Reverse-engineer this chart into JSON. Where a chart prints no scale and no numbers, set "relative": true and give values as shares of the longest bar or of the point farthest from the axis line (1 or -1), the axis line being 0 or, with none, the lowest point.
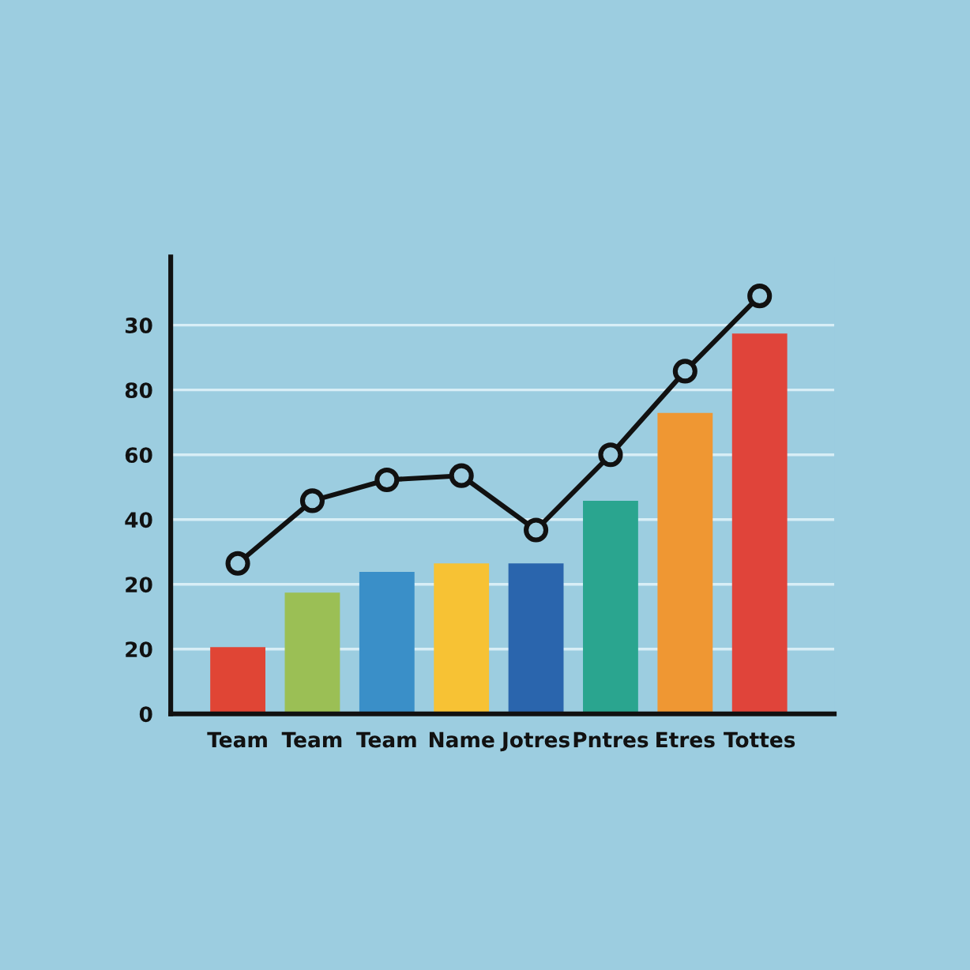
{
  "chart_data": {
    "type": "bar",
    "relative": true,
    "categories": [
      "Team",
      "Team",
      "Team",
      "Name",
      "Jotres",
      "Pntres",
      "Etres",
      "Tottes"
    ],
    "series": [
      {
        "colors": [
          "#e04535",
          "#9bbf55",
          "#3a8fc8",
          "#f7c234",
          "#2a65ad",
          "#2aa58f",
          "#ef9733",
          "#e0443a"
        ],
        "values": [
          0.16,
          0.29,
          0.34,
          0.36,
          0.36,
          0.51,
          0.72,
          0.91
        ]
      },
      {
        "type": "line",
        "color": "#111111",
        "values": [
          0.36,
          0.51,
          0.56,
          0.57,
          0.44,
          0.62,
          0.82,
          1
        ],
        "marker": "circle",
        "line_style": "solid"
      }
    ],
    "annotations": [
      "0",
      "20",
      "20",
      "40",
      "60",
      "80",
      "30"
    ],
    "grid": "y",
    "legend": false
  }
}
